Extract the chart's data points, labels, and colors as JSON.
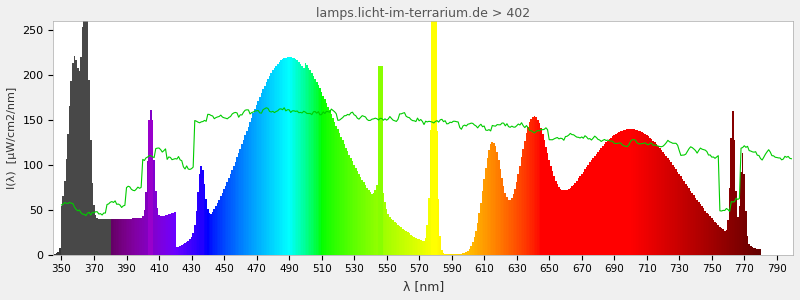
{
  "title": "lamps.licht-im-terrarium.de > 402",
  "xlabel": "λ [nm]",
  "ylabel": "I(λ)  [µW/cm2/nm]",
  "xlim": [
    345,
    800
  ],
  "ylim": [
    0,
    260
  ],
  "yticks": [
    0,
    50,
    100,
    150,
    200,
    250
  ],
  "xticks": [
    350,
    370,
    390,
    410,
    430,
    450,
    470,
    490,
    510,
    530,
    550,
    570,
    590,
    610,
    630,
    650,
    670,
    690,
    710,
    730,
    750,
    770,
    790
  ],
  "background_color": "#f0f0f0",
  "plot_bg_color": "#ffffff",
  "grid_color": "#ffffff",
  "title_color": "#555555",
  "axis_label_color": "#333333"
}
